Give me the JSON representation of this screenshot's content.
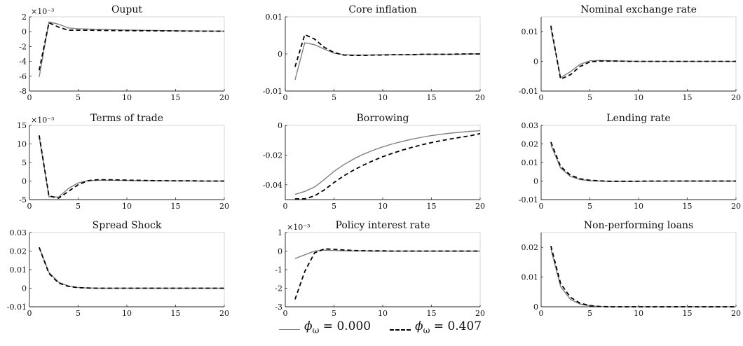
{
  "chart_data": [
    {
      "type": "line",
      "title": "Ouput",
      "exponent": "×10⁻³",
      "x": [
        1,
        2,
        3,
        4,
        5,
        6,
        7,
        8,
        9,
        10,
        11,
        12,
        13,
        14,
        15,
        16,
        17,
        18,
        19,
        20
      ],
      "xlim": [
        0,
        20
      ],
      "xticks": [
        "0",
        "5",
        "10",
        "15",
        "20"
      ],
      "ylim": [
        -8,
        2
      ],
      "yticks": [
        "-8",
        "-6",
        "-4",
        "-2",
        "0",
        "2"
      ],
      "series": [
        {
          "name": "ϕω = 0.000",
          "values": [
            -6.1,
            1.3,
            1.0,
            0.5,
            0.4,
            0.35,
            0.3,
            0.28,
            0.25,
            0.22,
            0.2,
            0.18,
            0.16,
            0.14,
            0.12,
            0.11,
            0.1,
            0.09,
            0.08,
            0.07
          ]
        },
        {
          "name": "ϕω = 0.407",
          "values": [
            -5.2,
            1.2,
            0.6,
            0.2,
            0.2,
            0.2,
            0.18,
            0.16,
            0.15,
            0.14,
            0.13,
            0.12,
            0.11,
            0.1,
            0.09,
            0.08,
            0.08,
            0.07,
            0.07,
            0.06
          ]
        }
      ]
    },
    {
      "type": "line",
      "title": "Core inflation",
      "x": [
        1,
        2,
        3,
        4,
        5,
        6,
        7,
        8,
        9,
        10,
        11,
        12,
        13,
        14,
        15,
        16,
        17,
        18,
        19,
        20
      ],
      "xlim": [
        0,
        20
      ],
      "xticks": [
        "0",
        "5",
        "10",
        "15",
        "20"
      ],
      "ylim": [
        -0.01,
        0.01
      ],
      "yticks": [
        "-0.01",
        "0",
        "0.01"
      ],
      "series": [
        {
          "name": "ϕω = 0.000",
          "values": [
            -0.007,
            0.003,
            0.0025,
            0.0013,
            0.0002,
            -0.0002,
            -0.0003,
            -0.0003,
            -0.0003,
            -0.0002,
            -0.0002,
            -0.0002,
            -0.0002,
            -0.0001,
            -0.0001,
            -0.0001,
            -0.0001,
            -0.0001,
            0,
            0
          ]
        },
        {
          "name": "ϕω = 0.407",
          "values": [
            -0.0035,
            0.0052,
            0.004,
            0.0018,
            0.0004,
            -0.0003,
            -0.0004,
            -0.0004,
            -0.0003,
            -0.0003,
            -0.0002,
            -0.0002,
            -0.0002,
            -0.0001,
            -0.0001,
            -0.0001,
            -0.0001,
            0,
            0,
            0
          ]
        }
      ]
    },
    {
      "type": "line",
      "title": "Nominal exchange rate",
      "x": [
        1,
        2,
        3,
        4,
        5,
        6,
        7,
        8,
        9,
        10,
        11,
        12,
        13,
        14,
        15,
        16,
        17,
        18,
        19,
        20
      ],
      "xlim": [
        0,
        20
      ],
      "xticks": [
        "0",
        "5",
        "10",
        "15",
        "20"
      ],
      "ylim": [
        -0.01,
        0.015
      ],
      "yticks": [
        "-0.01",
        "0",
        "0.01"
      ],
      "series": [
        {
          "name": "ϕω = 0.000",
          "values": [
            0.011,
            -0.0055,
            -0.0035,
            -0.001,
            0.0002,
            0.0003,
            0.0002,
            0.0001,
            0.0001,
            0,
            0,
            0,
            0,
            0,
            0,
            0,
            0,
            0,
            0,
            0
          ]
        },
        {
          "name": "ϕω = 0.407",
          "values": [
            0.012,
            -0.006,
            -0.0045,
            -0.0017,
            -0.0002,
            0.0001,
            0.0001,
            0.0001,
            0,
            0,
            0,
            0,
            0,
            0,
            0,
            0,
            0,
            0,
            0,
            0
          ]
        }
      ]
    },
    {
      "type": "line",
      "title": "Terms of trade",
      "exponent": "×10⁻³",
      "x": [
        1,
        2,
        3,
        4,
        5,
        6,
        7,
        8,
        9,
        10,
        11,
        12,
        13,
        14,
        15,
        16,
        17,
        18,
        19,
        20
      ],
      "xlim": [
        0,
        20
      ],
      "xticks": [
        "0",
        "5",
        "10",
        "15",
        "20"
      ],
      "ylim": [
        -5,
        15
      ],
      "yticks": [
        "-5",
        "0",
        "5",
        "10",
        "15"
      ],
      "series": [
        {
          "name": "ϕω = 0.000",
          "values": [
            12,
            -4.2,
            -4.3,
            -2.0,
            -0.5,
            0.1,
            0.2,
            0.2,
            0.2,
            0.15,
            0.1,
            0.1,
            0.1,
            0.05,
            0.05,
            0.05,
            0,
            0,
            0,
            0
          ]
        },
        {
          "name": "ϕω = 0.407",
          "values": [
            12.3,
            -4.0,
            -4.6,
            -2.8,
            -1.0,
            0.1,
            0.35,
            0.35,
            0.3,
            0.25,
            0.2,
            0.15,
            0.1,
            0.1,
            0.05,
            0.05,
            0.05,
            0,
            0,
            0
          ]
        }
      ]
    },
    {
      "type": "line",
      "title": "Borrowing",
      "x": [
        1,
        2,
        3,
        4,
        5,
        6,
        7,
        8,
        9,
        10,
        11,
        12,
        13,
        14,
        15,
        16,
        17,
        18,
        19,
        20
      ],
      "xlim": [
        0,
        20
      ],
      "xticks": [
        "0",
        "5",
        "10",
        "15",
        "20"
      ],
      "ylim": [
        -0.05,
        0
      ],
      "yticks": [
        "-0.04",
        "-0.02",
        "0"
      ],
      "series": [
        {
          "name": "ϕω = 0.000",
          "values": [
            -0.0465,
            -0.0445,
            -0.0415,
            -0.0365,
            -0.031,
            -0.0265,
            -0.0227,
            -0.0195,
            -0.0168,
            -0.0145,
            -0.0125,
            -0.0108,
            -0.0093,
            -0.008,
            -0.0069,
            -0.006,
            -0.0052,
            -0.0046,
            -0.004,
            -0.0036
          ]
        },
        {
          "name": "ϕω = 0.407",
          "values": [
            -0.0495,
            -0.0495,
            -0.0475,
            -0.0435,
            -0.0385,
            -0.034,
            -0.0302,
            -0.0268,
            -0.0238,
            -0.0211,
            -0.0188,
            -0.0167,
            -0.0148,
            -0.0131,
            -0.0116,
            -0.0103,
            -0.0091,
            -0.008,
            -0.007,
            -0.0055
          ]
        }
      ]
    },
    {
      "type": "line",
      "title": "Lending rate",
      "x": [
        1,
        2,
        3,
        4,
        5,
        6,
        7,
        8,
        9,
        10,
        11,
        12,
        13,
        14,
        15,
        16,
        17,
        18,
        19,
        20
      ],
      "xlim": [
        0,
        20
      ],
      "xticks": [
        "0",
        "5",
        "10",
        "15",
        "20"
      ],
      "ylim": [
        -0.01,
        0.03
      ],
      "yticks": [
        "-0.01",
        "0",
        "0.01",
        "0.02",
        "0.03"
      ],
      "series": [
        {
          "name": "ϕω = 0.000",
          "values": [
            0.0195,
            0.007,
            0.0025,
            0.0008,
            0.0002,
            0,
            -0.0002,
            -0.0002,
            -0.0002,
            -0.0001,
            -0.0001,
            -0.0001,
            0,
            0,
            0,
            0,
            0,
            0,
            0,
            0
          ]
        },
        {
          "name": "ϕω = 0.407",
          "values": [
            0.021,
            0.0078,
            0.0032,
            0.0012,
            0.0004,
            0.0001,
            -0.0001,
            -0.0001,
            -0.0001,
            -0.0001,
            0,
            0,
            0,
            0,
            0,
            0,
            0,
            0,
            0,
            0
          ]
        }
      ]
    },
    {
      "type": "line",
      "title": "Spread Shock",
      "x": [
        1,
        2,
        3,
        4,
        5,
        6,
        7,
        8,
        9,
        10,
        11,
        12,
        13,
        14,
        15,
        16,
        17,
        18,
        19,
        20
      ],
      "xlim": [
        0,
        20
      ],
      "xticks": [
        "0",
        "5",
        "10",
        "15",
        "20"
      ],
      "ylim": [
        -0.01,
        0.03
      ],
      "yticks": [
        "-0.01",
        "0",
        "0.01",
        "0.02",
        "0.03"
      ],
      "series": [
        {
          "name": "ϕω = 0.000",
          "values": [
            0.022,
            0.0085,
            0.0032,
            0.0012,
            0.0004,
            0.0001,
            0,
            0,
            0,
            0,
            0,
            0,
            0,
            0,
            0,
            0,
            0,
            0,
            0,
            0
          ]
        },
        {
          "name": "ϕω = 0.407",
          "values": [
            0.022,
            0.008,
            0.0028,
            0.001,
            0.0003,
            0.0001,
            0,
            0,
            0,
            0,
            0,
            0,
            0,
            0,
            0,
            0,
            0,
            0,
            0,
            0
          ]
        }
      ]
    },
    {
      "type": "line",
      "title": "Policy interest rate",
      "exponent": "×10⁻³",
      "x": [
        1,
        2,
        3,
        4,
        5,
        6,
        7,
        8,
        9,
        10,
        11,
        12,
        13,
        14,
        15,
        16,
        17,
        18,
        19,
        20
      ],
      "xlim": [
        0,
        20
      ],
      "xticks": [
        "0",
        "5",
        "10",
        "15",
        "20"
      ],
      "ylim": [
        -3,
        1
      ],
      "yticks": [
        "-3",
        "-2",
        "-1",
        "0",
        "1"
      ],
      "series": [
        {
          "name": "ϕω = 0.000",
          "values": [
            -0.4,
            -0.2,
            0,
            0.05,
            0.03,
            0.02,
            0.01,
            0.01,
            0,
            0,
            0,
            0,
            0,
            0,
            0,
            0,
            0,
            0,
            0,
            0
          ]
        },
        {
          "name": "ϕω = 0.407",
          "values": [
            -2.6,
            -1.1,
            -0.1,
            0.12,
            0.1,
            0.06,
            0.03,
            0.02,
            0.01,
            0.01,
            0,
            0,
            0,
            0,
            0,
            0,
            0,
            0,
            0,
            0
          ]
        }
      ]
    },
    {
      "type": "line",
      "title": "Non-performing loans",
      "x": [
        1,
        2,
        3,
        4,
        5,
        6,
        7,
        8,
        9,
        10,
        11,
        12,
        13,
        14,
        15,
        16,
        17,
        18,
        19,
        20
      ],
      "xlim": [
        0,
        20
      ],
      "xticks": [
        "0",
        "5",
        "10",
        "15",
        "20"
      ],
      "ylim": [
        0,
        0.025
      ],
      "yticks": [
        "0",
        "0.01",
        "0.02"
      ],
      "series": [
        {
          "name": "ϕω = 0.000",
          "values": [
            0.0195,
            0.0068,
            0.0025,
            0.0009,
            0.0003,
            0.0001,
            0,
            0,
            0,
            0,
            0,
            0,
            0,
            0,
            0,
            0,
            0,
            0,
            0,
            0
          ]
        },
        {
          "name": "ϕω = 0.407",
          "values": [
            0.0205,
            0.0078,
            0.0032,
            0.0012,
            0.0004,
            0.0001,
            0,
            0,
            0,
            0,
            0,
            0,
            0,
            0,
            0,
            0,
            0,
            0,
            0,
            0
          ]
        }
      ]
    }
  ],
  "legend": {
    "items": [
      {
        "symbol": "ϕ",
        "subscript": "ω",
        "eq": "= 0.000",
        "color": "#808080",
        "dash": ""
      },
      {
        "symbol": "ϕ",
        "subscript": "ω",
        "eq": "= 0.407",
        "color": "#000000",
        "dash": "6,4"
      }
    ]
  },
  "style": {
    "solid_color": "#808080",
    "dashed_color": "#000000",
    "axis_color": "#262626"
  }
}
